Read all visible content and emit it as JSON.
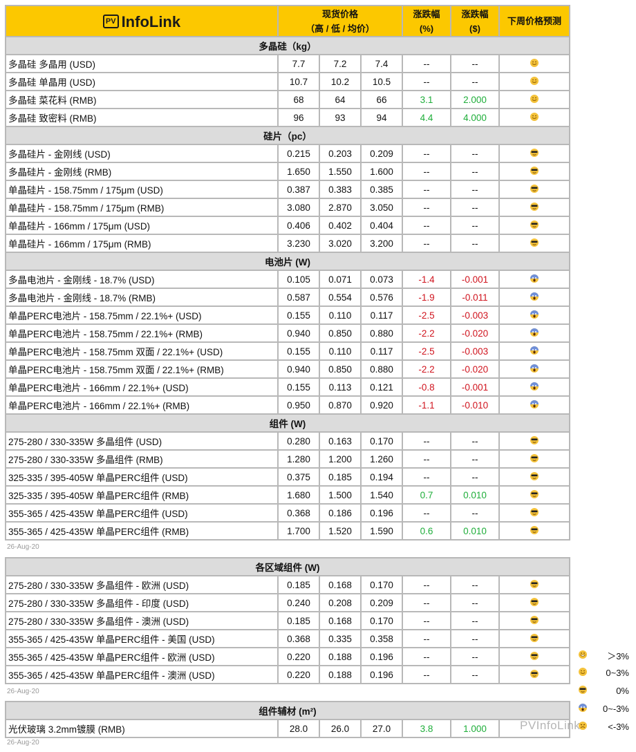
{
  "header": {
    "logo_text": "InfoLink",
    "logo_badge": "PV",
    "spot_price": "现货价格",
    "spot_sub": "（高 / 低 / 均价）",
    "change_pct": "涨跌幅",
    "change_pct_unit": "(%)",
    "change_usd": "涨跌幅",
    "change_usd_unit": "($)",
    "forecast": "下周价格预测"
  },
  "tables": [
    {
      "sections": [
        {
          "title": "多晶硅（kg）",
          "rows": [
            [
              "多晶硅 多晶用 (USD)",
              "7.7",
              "7.2",
              "7.4",
              "--",
              "--",
              "smile"
            ],
            [
              "多晶硅 单晶用 (USD)",
              "10.7",
              "10.2",
              "10.5",
              "--",
              "--",
              "smile"
            ],
            [
              "多晶硅 菜花料 (RMB)",
              "68",
              "64",
              "66",
              "3.1",
              "2.000",
              "smile"
            ],
            [
              "多晶硅 致密料 (RMB)",
              "96",
              "93",
              "94",
              "4.4",
              "4.000",
              "smile"
            ]
          ]
        },
        {
          "title": "硅片（pc）",
          "rows": [
            [
              "多晶硅片 - 金刚线 (USD)",
              "0.215",
              "0.203",
              "0.209",
              "--",
              "--",
              "cool"
            ],
            [
              "多晶硅片 - 金刚线 (RMB)",
              "1.650",
              "1.550",
              "1.600",
              "--",
              "--",
              "cool"
            ],
            [
              "单晶硅片 - 158.75mm / 175μm (USD)",
              "0.387",
              "0.383",
              "0.385",
              "--",
              "--",
              "cool"
            ],
            [
              "单晶硅片 - 158.75mm / 175μm (RMB)",
              "3.080",
              "2.870",
              "3.050",
              "--",
              "--",
              "cool"
            ],
            [
              "单晶硅片 - 166mm / 175μm (USD)",
              "0.406",
              "0.402",
              "0.404",
              "--",
              "--",
              "cool"
            ],
            [
              "单晶硅片 - 166mm / 175μm (RMB)",
              "3.230",
              "3.020",
              "3.200",
              "--",
              "--",
              "cool"
            ]
          ]
        },
        {
          "title": "电池片 (W)",
          "rows": [
            [
              "多晶电池片 - 金刚线 - 18.7% (USD)",
              "0.105",
              "0.071",
              "0.073",
              "-1.4",
              "-0.001",
              "scream"
            ],
            [
              "多晶电池片 - 金刚线 - 18.7% (RMB)",
              "0.587",
              "0.554",
              "0.576",
              "-1.9",
              "-0.011",
              "scream"
            ],
            [
              "单晶PERC电池片 - 158.75mm / 22.1%+ (USD)",
              "0.155",
              "0.110",
              "0.117",
              "-2.5",
              "-0.003",
              "scream"
            ],
            [
              "单晶PERC电池片 - 158.75mm / 22.1%+ (RMB)",
              "0.940",
              "0.850",
              "0.880",
              "-2.2",
              "-0.020",
              "scream"
            ],
            [
              "单晶PERC电池片 - 158.75mm 双面 / 22.1%+ (USD)",
              "0.155",
              "0.110",
              "0.117",
              "-2.5",
              "-0.003",
              "scream"
            ],
            [
              "单晶PERC电池片 - 158.75mm 双面 / 22.1%+ (RMB)",
              "0.940",
              "0.850",
              "0.880",
              "-2.2",
              "-0.020",
              "scream"
            ],
            [
              "单晶PERC电池片 - 166mm / 22.1%+ (USD)",
              "0.155",
              "0.113",
              "0.121",
              "-0.8",
              "-0.001",
              "scream"
            ],
            [
              "单晶PERC电池片 - 166mm / 22.1%+ (RMB)",
              "0.950",
              "0.870",
              "0.920",
              "-1.1",
              "-0.010",
              "scream"
            ]
          ]
        },
        {
          "title": "组件 (W)",
          "rows": [
            [
              "275-280 / 330-335W 多晶组件 (USD)",
              "0.280",
              "0.163",
              "0.170",
              "--",
              "--",
              "cool"
            ],
            [
              "275-280 / 330-335W 多晶组件 (RMB)",
              "1.280",
              "1.200",
              "1.260",
              "--",
              "--",
              "cool"
            ],
            [
              "325-335 / 395-405W 单晶PERC组件 (USD)",
              "0.375",
              "0.185",
              "0.194",
              "--",
              "--",
              "cool"
            ],
            [
              "325-335 / 395-405W 单晶PERC组件 (RMB)",
              "1.680",
              "1.500",
              "1.540",
              "0.7",
              "0.010",
              "cool"
            ],
            [
              "355-365 / 425-435W 单晶PERC组件 (USD)",
              "0.368",
              "0.186",
              "0.196",
              "--",
              "--",
              "cool"
            ],
            [
              "355-365 / 425-435W 单晶PERC组件 (RMB)",
              "1.700",
              "1.520",
              "1.590",
              "0.6",
              "0.010",
              "cool"
            ]
          ]
        }
      ],
      "date": "26-Aug-20"
    },
    {
      "sections": [
        {
          "title": "各区域组件 (W)",
          "rows": [
            [
              "275-280 / 330-335W  多晶组件 - 欧洲 (USD)",
              "0.185",
              "0.168",
              "0.170",
              "--",
              "--",
              "cool"
            ],
            [
              "275-280 / 330-335W  多晶组件 - 印度 (USD)",
              "0.240",
              "0.208",
              "0.209",
              "--",
              "--",
              "cool"
            ],
            [
              "275-280 / 330-335W  多晶组件 - 澳洲 (USD)",
              "0.185",
              "0.168",
              "0.170",
              "--",
              "--",
              "cool"
            ],
            [
              "355-365 / 425-435W 单晶PERC组件 - 美国 (USD)",
              "0.368",
              "0.335",
              "0.358",
              "--",
              "--",
              "cool"
            ],
            [
              "355-365 / 425-435W 单晶PERC组件 - 欧洲 (USD)",
              "0.220",
              "0.188",
              "0.196",
              "--",
              "--",
              "cool"
            ],
            [
              "355-365 / 425-435W 单晶PERC组件 - 澳洲 (USD)",
              "0.220",
              "0.188",
              "0.196",
              "--",
              "--",
              "cool"
            ]
          ]
        }
      ],
      "date": "26-Aug-20"
    },
    {
      "sections": [
        {
          "title": "组件辅材 (m²)",
          "rows": [
            [
              "光伏玻璃 3.2mm镀膜 (RMB)",
              "28.0",
              "26.0",
              "27.0",
              "3.8",
              "1.000",
              ""
            ]
          ]
        }
      ],
      "date": "26-Aug-20"
    }
  ],
  "legend": [
    {
      "icon": "grin",
      "label": "＞3%"
    },
    {
      "icon": "smile",
      "label": "0~3%"
    },
    {
      "icon": "cool",
      "label": "0%"
    },
    {
      "icon": "scream",
      "label": "0~-3%"
    },
    {
      "icon": "tired",
      "label": "<-3%"
    }
  ],
  "watermark": "PVInfoLink",
  "colors": {
    "header": "#fcc800",
    "section": "#dcdcdc",
    "up": "#1fae3a",
    "down": "#d0141e"
  }
}
